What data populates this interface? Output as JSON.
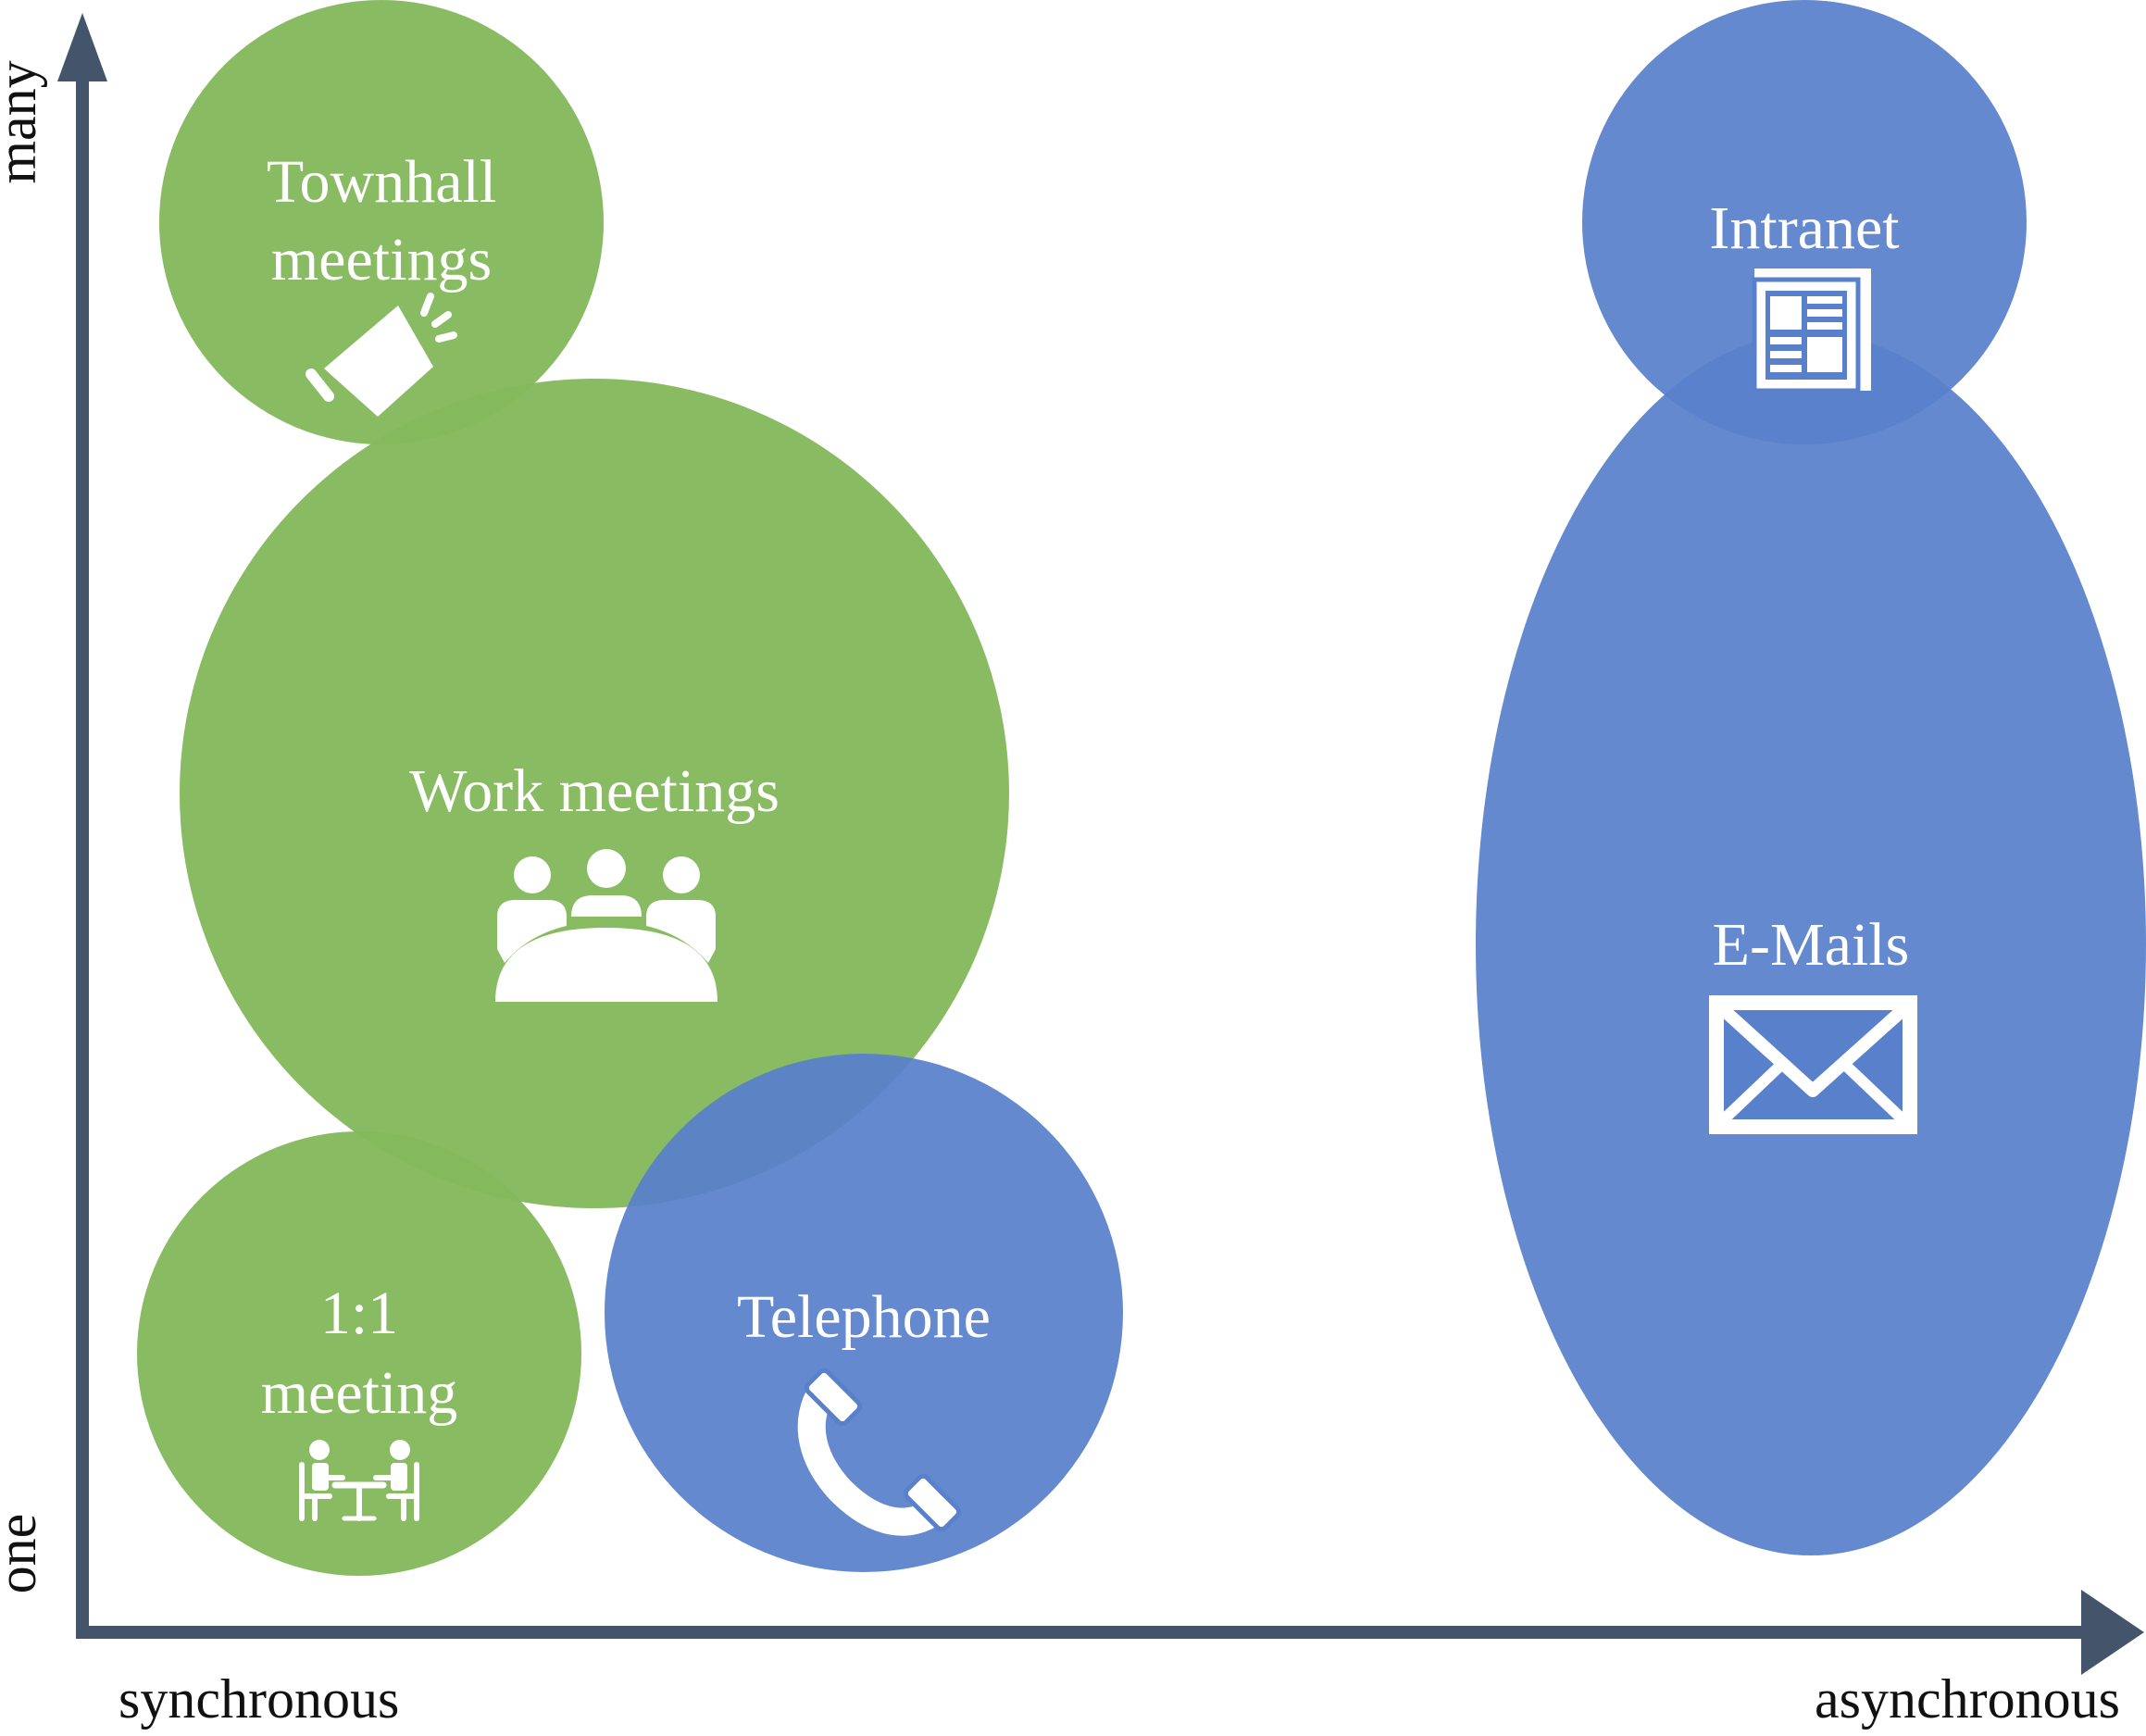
{
  "colors": {
    "green": "#84b85c",
    "blue": "#5880cb",
    "axis": "#44546a",
    "icon": "#ffffff"
  },
  "axes": {
    "x_start": "synchronous",
    "x_end": "asynchronous",
    "y_start": "one",
    "y_end": "many"
  },
  "blobs": [
    {
      "id": "townhall",
      "lines": [
        "Townhall",
        "meetings"
      ],
      "color": "green",
      "icon": "megaphone-icon"
    },
    {
      "id": "work",
      "lines": [
        "Work meetings"
      ],
      "color": "green",
      "icon": "meeting-table-icon"
    },
    {
      "id": "one-on-one",
      "lines": [
        "1:1",
        "meeting"
      ],
      "color": "green",
      "icon": "two-people-desk-icon"
    },
    {
      "id": "telephone",
      "lines": [
        "Telephone"
      ],
      "color": "blue",
      "icon": "phone-icon"
    },
    {
      "id": "intranet",
      "lines": [
        "Intranet"
      ],
      "color": "blue",
      "icon": "newspaper-icon"
    },
    {
      "id": "emails",
      "lines": [
        "E-Mails"
      ],
      "color": "blue",
      "icon": "envelope-icon"
    }
  ]
}
